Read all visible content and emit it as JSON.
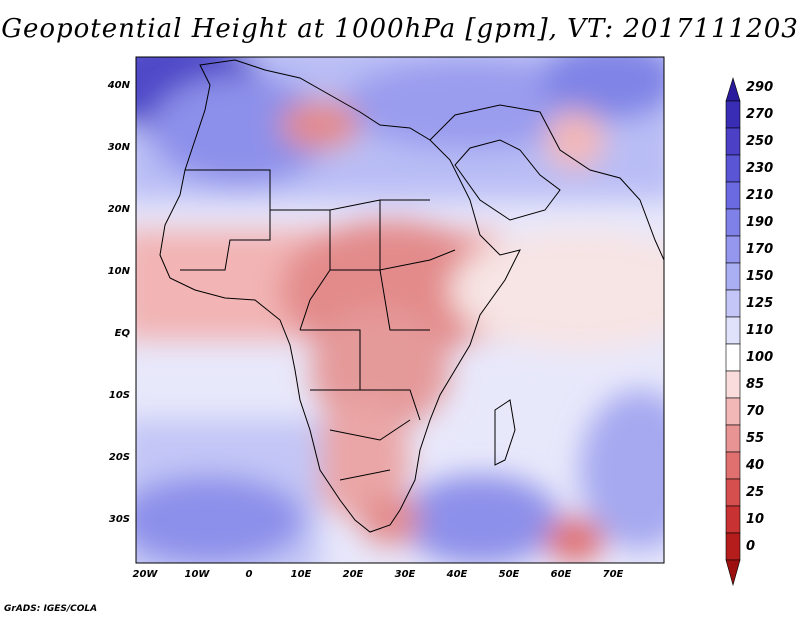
{
  "title": "Geopotential Height at 1000hPa [gpm], VT: 2017111203",
  "credit": "GrADS: IGES/COLA",
  "axes": {
    "lon_ticks": [
      "20W",
      "10W",
      "0",
      "10E",
      "20E",
      "30E",
      "40E",
      "50E",
      "60E",
      "70E"
    ],
    "lat_ticks": [
      "40N",
      "30N",
      "20N",
      "10N",
      "EQ",
      "10S",
      "20S",
      "30S"
    ]
  },
  "colorbar": {
    "levels": [
      "290",
      "270",
      "250",
      "230",
      "210",
      "190",
      "170",
      "150",
      "125",
      "110",
      "100",
      "85",
      "70",
      "55",
      "40",
      "25",
      "10",
      "0"
    ],
    "colors": [
      "#2a1a9c",
      "#3a2db5",
      "#4b40c6",
      "#5a55d4",
      "#6b6ae0",
      "#7f80e8",
      "#9596ee",
      "#aaaef2",
      "#c3c6f6",
      "#dfe2fa",
      "#ffffff",
      "#fadcdc",
      "#f2b8b8",
      "#e99494",
      "#e07070",
      "#d64f4f",
      "#c83232",
      "#b51d1d",
      "#9c1010"
    ]
  },
  "chart_data": {
    "type": "heatmap",
    "title": "Geopotential Height at 1000hPa [gpm], VT: 2017111203",
    "variable": "Geopotential Height at 1000hPa",
    "units": "gpm",
    "valid_time": "2017111203",
    "lon_range": [
      -22,
      80
    ],
    "lat_range": [
      -37,
      46
    ],
    "color_levels": [
      0,
      10,
      25,
      40,
      55,
      70,
      85,
      100,
      110,
      125,
      150,
      170,
      190,
      210,
      230,
      250,
      270,
      290
    ]
  }
}
